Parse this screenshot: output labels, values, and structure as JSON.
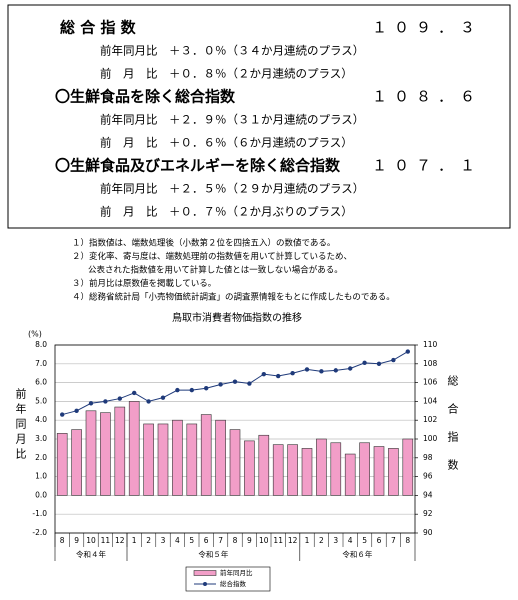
{
  "summary": {
    "items": [
      {
        "label": "総 合 指 数",
        "value": "１０９．３",
        "rows": [
          "前年同月比　＋３．０％（３４か月連続のプラス）",
          "前　月　比　＋０．８％（２か月連続のプラス）"
        ]
      },
      {
        "label": "〇生鮮食品を除く総合指数",
        "value": "１０８．６",
        "rows": [
          "前年同月比　＋２．９％（３１か月連続のプラス）",
          "前　月　比　＋０．６％（６か月連続のプラス）"
        ]
      },
      {
        "label": "〇生鮮食品及びエネルギーを除く総合指数",
        "value": "１０７．１",
        "rows": [
          "前年同月比　＋２．５％（２９か月連続のプラス）",
          "前　月　比　＋０．７％（２か月ぶりのプラス）"
        ]
      }
    ]
  },
  "notes": [
    "１）指数値は、端数処理後（小数第２位を四捨五入）の数値である。",
    "２）変化率、寄与度は、端数処理前の指数値を用いて計算しているため、",
    "公表された指数値を用いて計算した値とは一致しない場合がある。",
    "３）前月比は原数値を掲載している。",
    "４）総務省統計局「小売物価統計調査」の調査票情報をもとに作成したものである。"
  ],
  "chart_data": {
    "type": "bar-line",
    "title": "鳥取市消費者物価指数の推移",
    "y_unit": "(%)",
    "y_label": "前年同月比",
    "y2_label": "総合指数",
    "category_groups": [
      {
        "label": "令和４年",
        "categories": [
          "8",
          "9",
          "10",
          "11",
          "12"
        ]
      },
      {
        "label": "令和５年",
        "categories": [
          "1",
          "2",
          "3",
          "4",
          "5",
          "6",
          "7",
          "8",
          "9",
          "10",
          "11",
          "12"
        ]
      },
      {
        "label": "令和６年",
        "categories": [
          "1",
          "2",
          "3",
          "4",
          "5",
          "6",
          "7",
          "8"
        ]
      }
    ],
    "series": [
      {
        "name": "前年同月比",
        "type": "bar",
        "color": "#f29ec8",
        "values": [
          3.3,
          3.5,
          4.5,
          4.4,
          4.7,
          5.0,
          3.8,
          3.8,
          4.0,
          3.8,
          4.3,
          4.0,
          3.5,
          2.9,
          3.2,
          2.7,
          2.7,
          2.5,
          3.0,
          2.8,
          2.2,
          2.8,
          2.6,
          2.5,
          3.0
        ]
      },
      {
        "name": "総合指数",
        "type": "line",
        "axis": "y2",
        "color": "#1f3a7a",
        "values": [
          102.6,
          103.0,
          103.8,
          104.0,
          104.3,
          104.9,
          104.0,
          104.4,
          105.2,
          105.2,
          105.4,
          105.8,
          106.1,
          105.9,
          106.9,
          106.7,
          107.0,
          107.4,
          107.2,
          107.3,
          107.5,
          108.1,
          108.0,
          108.4,
          109.3
        ]
      }
    ],
    "ylim": [
      -2,
      8
    ],
    "yticks": [
      {
        "value": -2,
        "label": "-2.0"
      },
      {
        "value": -1,
        "label": "-1.0"
      },
      {
        "value": 0,
        "label": "0.0"
      },
      {
        "value": 1,
        "label": "1.0"
      },
      {
        "value": 2,
        "label": "2.0"
      },
      {
        "value": 3,
        "label": "3.0"
      },
      {
        "value": 4,
        "label": "4.0"
      },
      {
        "value": 5,
        "label": "5.0"
      },
      {
        "value": 6,
        "label": "6.0"
      },
      {
        "value": 7,
        "label": "7.0"
      },
      {
        "value": 8,
        "label": "8.0"
      }
    ],
    "y2lim": [
      90,
      110
    ],
    "y2ticks": [
      90,
      92,
      94,
      96,
      98,
      100,
      102,
      104,
      106,
      108,
      110
    ],
    "grid": true
  }
}
